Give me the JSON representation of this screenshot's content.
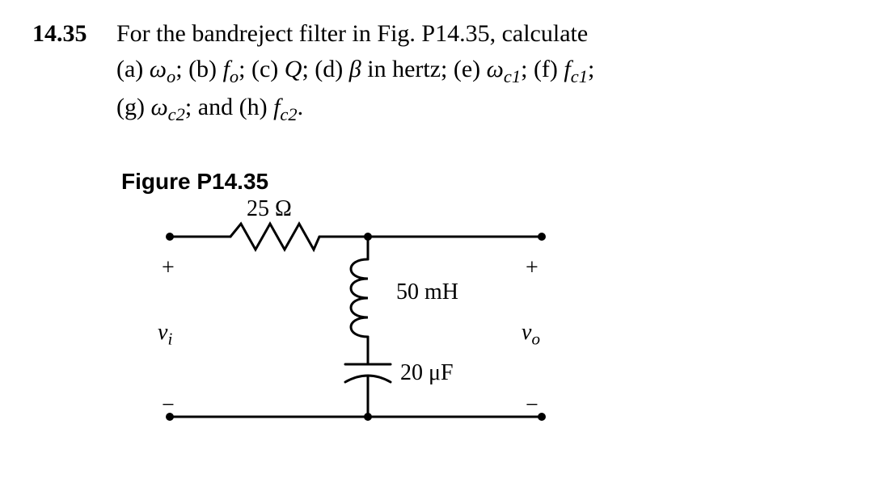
{
  "problem": {
    "number": "14.35",
    "line1_a": "For the bandreject filter in Fig. P14.35, calculate",
    "line2_a": "(a) ",
    "line2_w": "ω",
    "line2_wo_sub": "o",
    "line2_b": "; (b) ",
    "line2_f": "f",
    "line2_fo_sub": "o",
    "line2_c": "; (c) ",
    "line2_Q": "Q",
    "line2_d": "; (d) ",
    "line2_beta": "β",
    "line2_e": " in hertz; (e) ",
    "line2_w2": "ω",
    "line2_wc1_sub": "c1",
    "line2_f2": "; (f) ",
    "line2_ff": "f",
    "line2_fc1_sub": "c1",
    "line2_end": ";",
    "line3_a": "(g) ",
    "line3_w": "ω",
    "line3_wc2_sub": "c2",
    "line3_b": "; and (h) ",
    "line3_f": "f",
    "line3_fc2_sub": "c2",
    "line3_end": "."
  },
  "figure": {
    "label": "Figure P14.35",
    "R_value": "25 Ω",
    "L_value": "50 mH",
    "C_value": "20 μF",
    "vi_plus": "+",
    "vo_plus": "+",
    "vi_minus": "−",
    "vo_minus": "−",
    "vi": "v",
    "vi_sub": "i",
    "vo": "v",
    "vo_sub": "o",
    "stroke": "#000000",
    "stroke_w": 3,
    "node_r": 5
  }
}
